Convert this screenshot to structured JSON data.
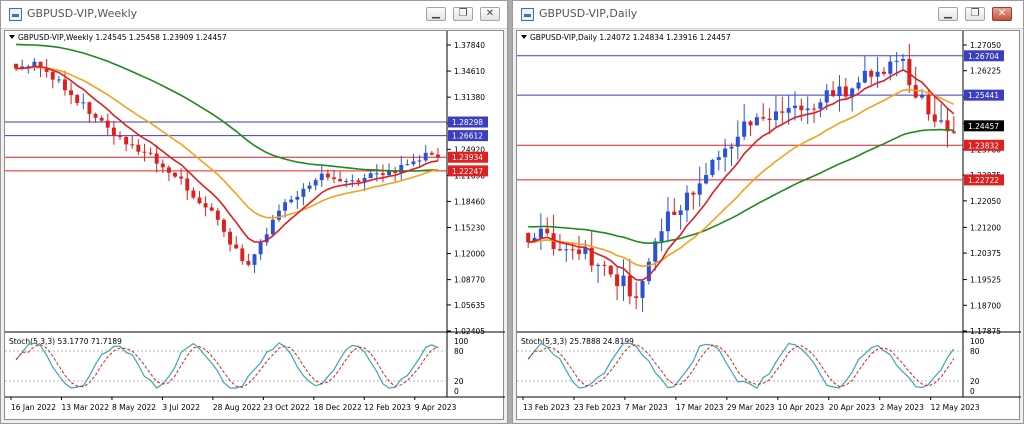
{
  "windows": [
    {
      "id": "weekly",
      "title": "GBPUSD-VIP,Weekly",
      "header": "GBPUSD-VIP,Weekly  1.24545 1.25458 1.23909 1.24457",
      "price_scale": {
        "ticks": [
          "1.37840",
          "1.34610",
          "1.31380",
          "1.28150",
          "1.24920",
          "1.21690",
          "1.18460",
          "1.15230",
          "1.12000",
          "1.08770",
          "1.05635",
          "1.02405"
        ],
        "min": 1.02405,
        "max": 1.3784
      },
      "price_labels": [
        {
          "text": "1.28298",
          "value": 1.28298,
          "bg": "#3b3ec2"
        },
        {
          "text": "1.26612",
          "value": 1.26612,
          "bg": "#3b3ec2"
        },
        {
          "text": "1.23934",
          "value": 1.23934,
          "bg": "#e02020"
        },
        {
          "text": "1.22247",
          "value": 1.22247,
          "bg": "#e02020"
        }
      ],
      "stoch_header": "Stoch(5,3,3) 53.1770 71.7189",
      "stoch_levels": [
        "100",
        "80",
        "20",
        "0"
      ],
      "time_labels": [
        "16 Jan 2022",
        "13 Mar 2022",
        "8 May 2022",
        "3 Jul 2022",
        "28 Aug 2022",
        "23 Oct 2022",
        "18 Dec 2022",
        "12 Feb 2023",
        "9 Apr 2023"
      ],
      "colors": {
        "bull": "#2a52d8",
        "bear": "#e01e1e",
        "ma_fast": "#e01e1e",
        "ma_mid": "#f5a11e",
        "ma_slow": "#1d8a1d",
        "stoch_main": "#3aa7b5",
        "stoch_signal": "#e01e1e"
      }
    },
    {
      "id": "daily",
      "title": "GBPUSD-VIP,Daily",
      "header": "GBPUSD-VIP,Daily  1.24072 1.24834 1.23916 1.24457",
      "price_scale": {
        "ticks": [
          "1.27050",
          "1.26225",
          "1.25370",
          "1.24530",
          "1.23700",
          "1.22875",
          "1.22050",
          "1.21200",
          "1.20375",
          "1.19525",
          "1.18700",
          "1.17875"
        ],
        "min": 1.17875,
        "max": 1.2705
      },
      "price_labels": [
        {
          "text": "1.26704",
          "value": 1.26704,
          "bg": "#3b3ec2"
        },
        {
          "text": "1.25441",
          "value": 1.25441,
          "bg": "#3b3ec2"
        },
        {
          "text": "1.24457",
          "value": 1.24457,
          "bg": "#000000"
        },
        {
          "text": "1.23832",
          "value": 1.23832,
          "bg": "#e02020"
        },
        {
          "text": "1.22722",
          "value": 1.22722,
          "bg": "#e02020"
        }
      ],
      "stoch_header": "Stoch(5,3,3) 25.7888 24.8199",
      "stoch_levels": [
        "100",
        "80",
        "20",
        "0"
      ],
      "time_labels": [
        "13 Feb 2023",
        "23 Feb 2023",
        "7 Mar 2023",
        "17 Mar 2023",
        "29 Mar 2023",
        "10 Apr 2023",
        "20 Apr 2023",
        "2 May 2023",
        "12 May 2023"
      ],
      "colors": {
        "bull": "#2a52d8",
        "bear": "#e01e1e",
        "ma_fast": "#e01e1e",
        "ma_mid": "#f5a11e",
        "ma_slow": "#1d8a1d",
        "stoch_main": "#3aa7b5",
        "stoch_signal": "#e01e1e"
      }
    }
  ],
  "buttons": {
    "minimize": "▁",
    "restore": "❐",
    "close": "✕"
  }
}
